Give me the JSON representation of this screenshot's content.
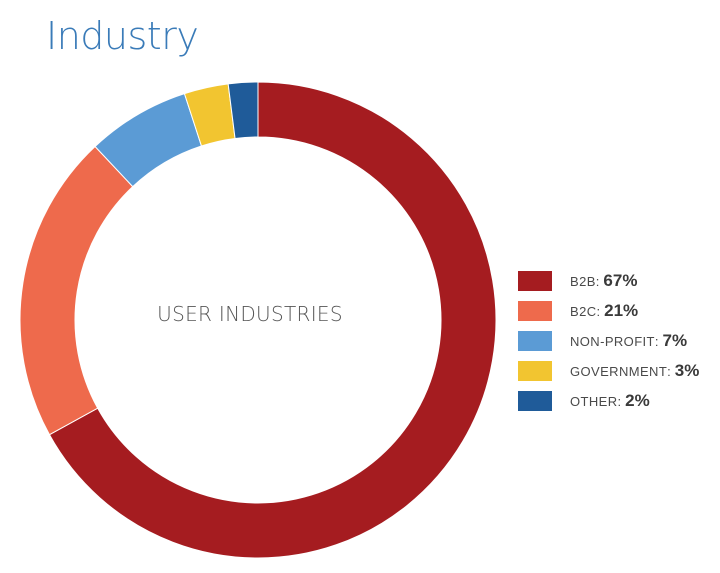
{
  "title": "Industry",
  "chart_data": {
    "type": "pie",
    "style": "donut",
    "title": "Industry",
    "center_label": "USER INDUSTRIES",
    "categories": [
      "B2B",
      "B2C",
      "NON-PROFIT",
      "GOVERNMENT",
      "OTHER"
    ],
    "values": [
      67,
      21,
      7,
      3,
      2
    ],
    "value_labels": [
      "67%",
      "21%",
      "7%",
      "3%",
      "2%"
    ],
    "colors": [
      "#a51c20",
      "#ee6a4c",
      "#5b9bd5",
      "#f2c530",
      "#1f5b99"
    ],
    "legend": "right"
  }
}
